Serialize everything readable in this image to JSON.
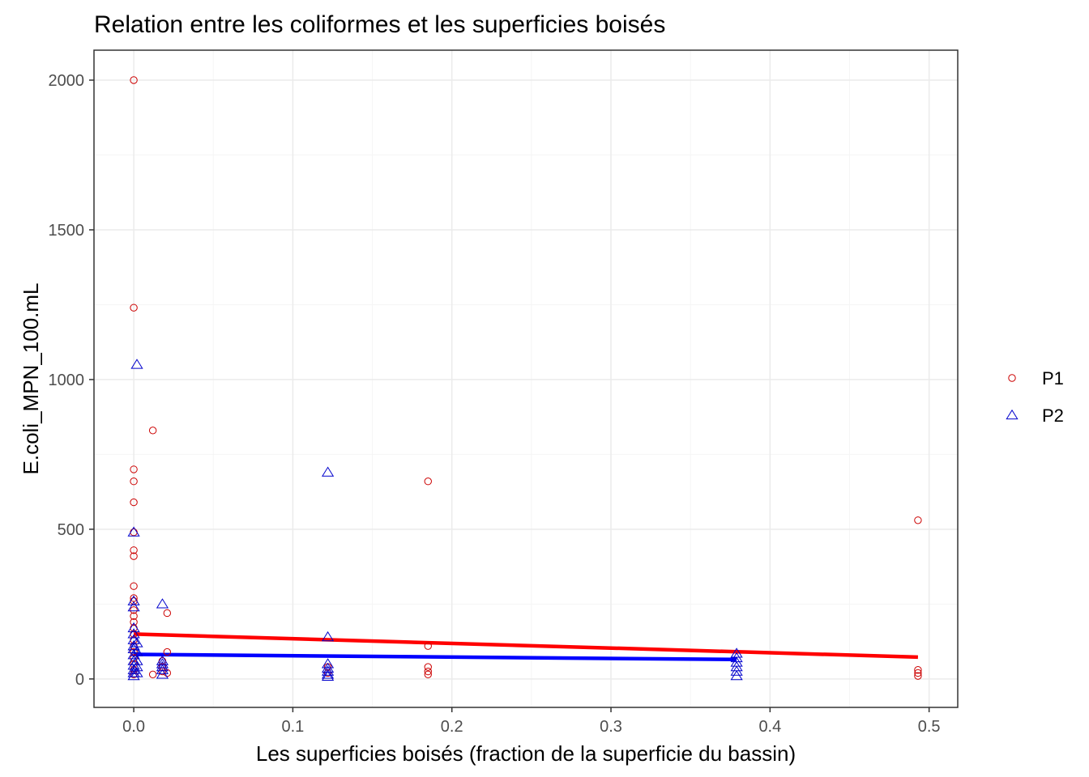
{
  "chart_data": {
    "type": "scatter",
    "title": "Relation entre les coliformes et les superficies boisés",
    "xlabel": "Les superficies boisés (fraction de la superficie du bassin)",
    "ylabel": "E.coli_MPN_100.mL",
    "xlim": [
      -0.025,
      0.518
    ],
    "ylim": [
      -95,
      2100
    ],
    "x_ticks": [
      0.0,
      0.1,
      0.2,
      0.3,
      0.4,
      0.5
    ],
    "x_tick_labels": [
      "0.0",
      "0.1",
      "0.2",
      "0.3",
      "0.4",
      "0.5"
    ],
    "y_ticks": [
      0,
      500,
      1000,
      1500,
      2000
    ],
    "y_tick_labels": [
      "0",
      "500",
      "1000",
      "1500",
      "2000"
    ],
    "grid": true,
    "legend_position": "right",
    "series": [
      {
        "name": "P1",
        "marker": "circle",
        "color": "#cc0000",
        "points": [
          [
            0.0,
            2000
          ],
          [
            0.0,
            1240
          ],
          [
            0.0,
            700
          ],
          [
            0.0,
            660
          ],
          [
            0.0,
            590
          ],
          [
            0.0,
            490
          ],
          [
            0.0,
            430
          ],
          [
            0.0,
            410
          ],
          [
            0.0,
            310
          ],
          [
            0.0,
            270
          ],
          [
            0.0,
            260
          ],
          [
            0.0,
            230
          ],
          [
            0.0,
            210
          ],
          [
            0.0,
            190
          ],
          [
            0.0,
            170
          ],
          [
            0.0,
            150
          ],
          [
            0.0,
            130
          ],
          [
            0.0,
            110
          ],
          [
            0.0,
            90
          ],
          [
            0.0,
            70
          ],
          [
            0.0,
            50
          ],
          [
            0.0,
            30
          ],
          [
            0.0,
            15
          ],
          [
            0.012,
            830
          ],
          [
            0.012,
            15
          ],
          [
            0.018,
            60
          ],
          [
            0.018,
            40
          ],
          [
            0.018,
            25
          ],
          [
            0.021,
            220
          ],
          [
            0.021,
            90
          ],
          [
            0.021,
            20
          ],
          [
            0.122,
            20
          ],
          [
            0.122,
            40
          ],
          [
            0.185,
            660
          ],
          [
            0.185,
            110
          ],
          [
            0.185,
            40
          ],
          [
            0.185,
            25
          ],
          [
            0.185,
            15
          ],
          [
            0.493,
            530
          ],
          [
            0.493,
            30
          ],
          [
            0.493,
            20
          ],
          [
            0.493,
            10
          ]
        ],
        "trend": [
          [
            0.0,
            150
          ],
          [
            0.493,
            73
          ]
        ]
      },
      {
        "name": "P2",
        "marker": "triangle",
        "color": "#0000cc",
        "points": [
          [
            0.002,
            1050
          ],
          [
            0.0,
            490
          ],
          [
            0.0,
            260
          ],
          [
            0.0,
            240
          ],
          [
            0.0,
            170
          ],
          [
            0.0,
            150
          ],
          [
            0.0,
            130
          ],
          [
            0.0,
            110
          ],
          [
            0.0,
            100
          ],
          [
            0.0,
            80
          ],
          [
            0.0,
            60
          ],
          [
            0.0,
            45
          ],
          [
            0.0,
            30
          ],
          [
            0.0,
            20
          ],
          [
            0.0,
            10
          ],
          [
            0.002,
            120
          ],
          [
            0.002,
            90
          ],
          [
            0.002,
            60
          ],
          [
            0.002,
            40
          ],
          [
            0.002,
            20
          ],
          [
            0.018,
            250
          ],
          [
            0.018,
            60
          ],
          [
            0.018,
            50
          ],
          [
            0.018,
            40
          ],
          [
            0.018,
            30
          ],
          [
            0.018,
            15
          ],
          [
            0.122,
            690
          ],
          [
            0.122,
            140
          ],
          [
            0.122,
            50
          ],
          [
            0.122,
            35
          ],
          [
            0.122,
            25
          ],
          [
            0.122,
            15
          ],
          [
            0.122,
            8
          ],
          [
            0.379,
            85
          ],
          [
            0.379,
            70
          ],
          [
            0.379,
            55
          ],
          [
            0.379,
            40
          ],
          [
            0.379,
            25
          ],
          [
            0.379,
            10
          ]
        ],
        "trend": [
          [
            0.0,
            82
          ],
          [
            0.379,
            65
          ]
        ]
      }
    ]
  },
  "colors": {
    "p1_trend": "#ff0000",
    "p2_trend": "#0000ff",
    "grid_major": "#ebebeb",
    "grid_minor": "#f5f5f5",
    "panel_border": "#333333",
    "tick_text": "#4d4d4d"
  }
}
